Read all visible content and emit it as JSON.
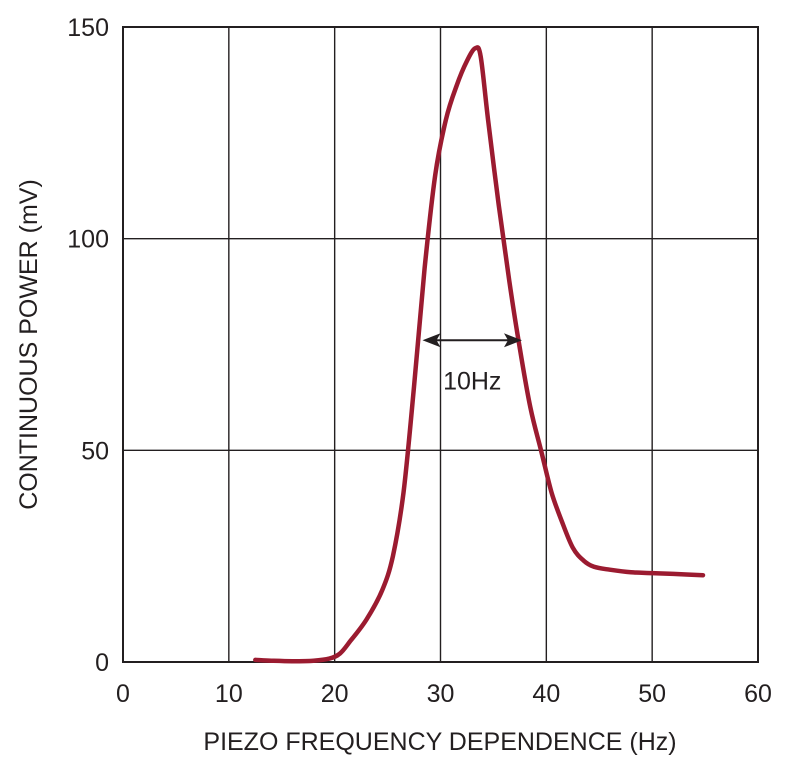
{
  "chart_data": {
    "type": "line",
    "title": "",
    "xlabel": "PIEZO FREQUENCY DEPENDENCE (Hz)",
    "ylabel": "CONTINUOUS POWER (mV)",
    "xlim": [
      0,
      60
    ],
    "ylim": [
      0,
      150
    ],
    "x_ticks": [
      0,
      10,
      20,
      30,
      40,
      50,
      60
    ],
    "y_ticks": [
      0,
      50,
      100,
      150
    ],
    "grid": true,
    "series": [
      {
        "color": "#9b1b30",
        "x": [
          12.5,
          14,
          16,
          18,
          19.5,
          20.5,
          21.5,
          23,
          24.5,
          25.5,
          26.5,
          27.5,
          28.5,
          29.5,
          30.5,
          31.5,
          32.5,
          33.3,
          33.8,
          34.5,
          35.5,
          36.5,
          37.5,
          38.5,
          39.5,
          40.5,
          41.5,
          42.5,
          43.5,
          44.5,
          46,
          48,
          50,
          52,
          54.8
        ],
        "y": [
          0.5,
          0.3,
          0.2,
          0.3,
          0.8,
          2,
          5,
          10,
          17,
          25,
          40,
          65,
          93,
          115,
          128,
          136,
          142,
          145,
          143,
          128,
          108,
          90,
          74,
          60,
          50,
          40,
          33,
          27,
          24,
          22.5,
          21.8,
          21.2,
          21,
          20.8,
          20.5
        ]
      }
    ],
    "annotations": [
      {
        "text": "10Hz",
        "x_start": 28.3,
        "x_end": 37.7,
        "y": 76
      }
    ]
  }
}
